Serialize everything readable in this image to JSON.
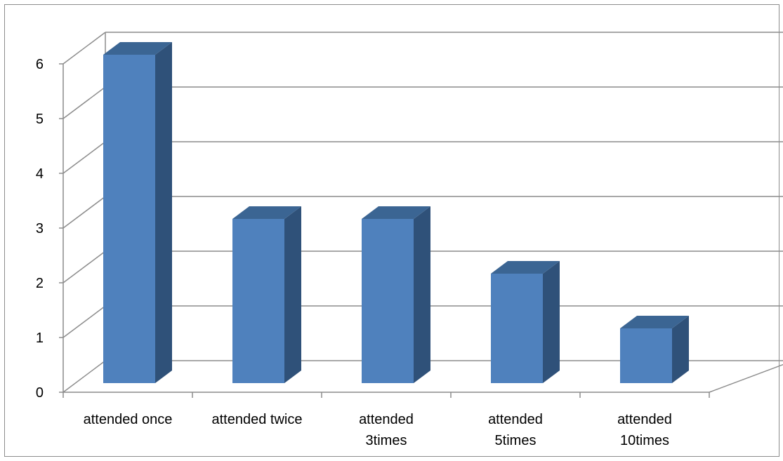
{
  "chart_data": {
    "type": "bar",
    "style": "3d-column",
    "categories": [
      [
        "attended once"
      ],
      [
        "attended twice"
      ],
      [
        "attended",
        "3times"
      ],
      [
        "attended",
        "5times"
      ],
      [
        "attended",
        "10times"
      ]
    ],
    "values": [
      6,
      3,
      3,
      2,
      1
    ],
    "yticks": [
      "0",
      "1",
      "2",
      "3",
      "4",
      "5",
      "6"
    ],
    "ylim": [
      0,
      6
    ],
    "grid": true,
    "legend": "none",
    "colors": {
      "front": "#4f81bd",
      "side": "#2f5179",
      "top": "#3b6593",
      "grid": "#8c8c8c"
    }
  }
}
